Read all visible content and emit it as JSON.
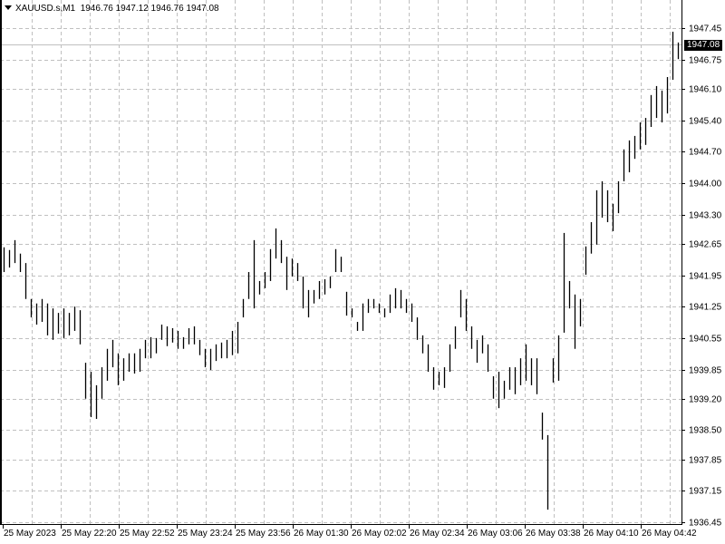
{
  "header": {
    "symbol": "XAUUSD.s,M1",
    "ohlc": "1946.76 1947.12 1946.76 1947.08"
  },
  "colors": {
    "background": "#ffffff",
    "bars": "#000000",
    "grid": "#c0c0c0",
    "bid_line": "#c0c0c0"
  },
  "chart_data": {
    "type": "bar",
    "subtype": "ohlc-bars",
    "grid": true,
    "ylim": [
      1936.45,
      1947.45
    ],
    "y_ticks": [
      "1947.45",
      "1946.75",
      "1946.10",
      "1945.40",
      "1944.70",
      "1944.00",
      "1943.30",
      "1942.65",
      "1941.95",
      "1941.25",
      "1940.55",
      "1939.85",
      "1939.20",
      "1938.50",
      "1937.85",
      "1937.15",
      "1936.45"
    ],
    "x_ticks": [
      "25 May 2023",
      "25 May 22:20",
      "25 May 22:52",
      "25 May 23:24",
      "25 May 23:56",
      "26 May 01:30",
      "26 May 02:02",
      "26 May 02:34",
      "26 May 03:06",
      "26 May 03:38",
      "26 May 04:10",
      "26 May 04:42"
    ],
    "bid": 1947.08,
    "bid_label": "1947.08",
    "bars_high_low": [
      [
        1942.57,
        1942.02
      ],
      [
        1942.51,
        1942.12
      ],
      [
        1942.73,
        1942.22
      ],
      [
        1942.43,
        1942.02
      ],
      [
        1942.22,
        1941.42
      ],
      [
        1941.42,
        1941.01
      ],
      [
        1941.32,
        1940.85
      ],
      [
        1941.42,
        1940.91
      ],
      [
        1941.32,
        1940.61
      ],
      [
        1941.21,
        1940.51
      ],
      [
        1941.11,
        1940.65
      ],
      [
        1941.21,
        1940.55
      ],
      [
        1941.11,
        1940.61
      ],
      [
        1941.25,
        1940.71
      ],
      [
        1941.17,
        1940.41
      ],
      [
        1940.0,
        1939.2
      ],
      [
        1939.8,
        1938.79
      ],
      [
        1939.5,
        1938.75
      ],
      [
        1939.9,
        1939.2
      ],
      [
        1940.31,
        1939.6
      ],
      [
        1940.51,
        1939.9
      ],
      [
        1940.21,
        1939.5
      ],
      [
        1940.1,
        1939.6
      ],
      [
        1940.21,
        1939.8
      ],
      [
        1940.21,
        1939.76
      ],
      [
        1940.31,
        1939.8
      ],
      [
        1940.51,
        1940.1
      ],
      [
        1940.57,
        1940.1
      ],
      [
        1940.55,
        1940.21
      ],
      [
        1940.85,
        1940.51
      ],
      [
        1940.81,
        1940.37
      ],
      [
        1940.77,
        1940.45
      ],
      [
        1940.71,
        1940.31
      ],
      [
        1940.57,
        1940.31
      ],
      [
        1940.77,
        1940.41
      ],
      [
        1940.81,
        1940.41
      ],
      [
        1940.51,
        1940.17
      ],
      [
        1940.31,
        1939.9
      ],
      [
        1940.31,
        1939.84
      ],
      [
        1940.41,
        1940.04
      ],
      [
        1940.45,
        1940.1
      ],
      [
        1940.51,
        1940.1
      ],
      [
        1940.71,
        1940.17
      ],
      [
        1940.91,
        1940.21
      ],
      [
        1941.42,
        1941.01
      ],
      [
        1942.02,
        1941.42
      ],
      [
        1942.73,
        1941.21
      ],
      [
        1941.82,
        1941.52
      ],
      [
        1942.02,
        1941.66
      ],
      [
        1942.53,
        1941.82
      ],
      [
        1942.99,
        1942.32
      ],
      [
        1942.73,
        1942.22
      ],
      [
        1942.36,
        1941.62
      ],
      [
        1942.32,
        1941.92
      ],
      [
        1942.22,
        1941.82
      ],
      [
        1941.92,
        1941.21
      ],
      [
        1941.62,
        1941.01
      ],
      [
        1941.62,
        1941.32
      ],
      [
        1941.82,
        1941.42
      ],
      [
        1941.86,
        1941.52
      ],
      [
        1941.92,
        1941.66
      ],
      [
        1942.53,
        1942.02
      ],
      [
        1942.36,
        1942.02
      ],
      [
        1941.58,
        1941.05
      ],
      [
        1941.21,
        1941.01
      ],
      [
        1940.91,
        1940.71
      ],
      [
        1941.32,
        1940.71
      ],
      [
        1941.42,
        1941.11
      ],
      [
        1941.42,
        1941.21
      ],
      [
        1941.32,
        1941.11
      ],
      [
        1941.21,
        1941.01
      ],
      [
        1941.52,
        1941.11
      ],
      [
        1941.66,
        1941.21
      ],
      [
        1941.62,
        1941.21
      ],
      [
        1941.42,
        1941.11
      ],
      [
        1941.32,
        1940.91
      ],
      [
        1941.01,
        1940.51
      ],
      [
        1940.61,
        1940.21
      ],
      [
        1940.41,
        1939.8
      ],
      [
        1939.9,
        1939.4
      ],
      [
        1939.8,
        1939.5
      ],
      [
        1939.9,
        1939.44
      ],
      [
        1940.41,
        1939.8
      ],
      [
        1940.81,
        1940.31
      ],
      [
        1941.62,
        1941.01
      ],
      [
        1941.42,
        1940.71
      ],
      [
        1940.81,
        1940.31
      ],
      [
        1940.51,
        1940.0
      ],
      [
        1940.61,
        1940.21
      ],
      [
        1940.41,
        1939.8
      ],
      [
        1939.7,
        1939.2
      ],
      [
        1939.8,
        1938.99
      ],
      [
        1939.6,
        1939.2
      ],
      [
        1939.9,
        1939.4
      ],
      [
        1939.9,
        1939.3
      ],
      [
        1940.1,
        1939.5
      ],
      [
        1940.41,
        1939.6
      ],
      [
        1940.1,
        1939.5
      ],
      [
        1940.1,
        1939.3
      ],
      [
        1938.89,
        1938.29
      ],
      [
        1938.39,
        1936.73
      ],
      [
        1940.1,
        1939.56
      ],
      [
        1940.61,
        1939.6
      ],
      [
        1942.89,
        1940.67
      ],
      [
        1941.82,
        1941.21
      ],
      [
        1941.52,
        1940.31
      ],
      [
        1941.42,
        1940.81
      ],
      [
        1942.59,
        1941.96
      ],
      [
        1943.13,
        1942.43
      ],
      [
        1943.84,
        1942.63
      ],
      [
        1944.04,
        1943.23
      ],
      [
        1943.84,
        1943.13
      ],
      [
        1943.54,
        1942.93
      ],
      [
        1944.04,
        1943.33
      ],
      [
        1944.75,
        1944.04
      ],
      [
        1944.95,
        1944.24
      ],
      [
        1945.05,
        1944.54
      ],
      [
        1945.35,
        1944.75
      ],
      [
        1945.45,
        1944.85
      ],
      [
        1945.96,
        1945.25
      ],
      [
        1946.16,
        1945.45
      ],
      [
        1946.06,
        1945.35
      ],
      [
        1946.36,
        1945.55
      ],
      [
        1947.37,
        1946.3
      ],
      [
        1947.13,
        1946.76
      ]
    ]
  }
}
